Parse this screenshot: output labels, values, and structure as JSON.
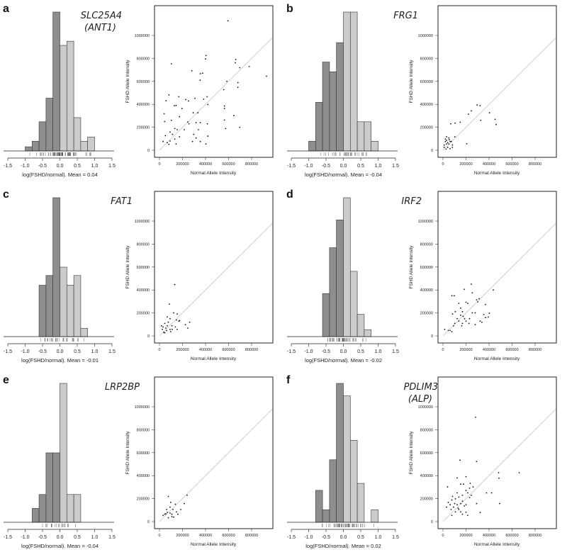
{
  "colors": {
    "negative_bar": "#8e8e8e",
    "positive_bar": "#cbcbcb",
    "identity_line": "#c4c4c4",
    "points": "#111111"
  },
  "shared": {
    "hist_xticks": [
      "-1.5",
      "-1.0",
      "-0.5",
      "0.0",
      "0.5",
      "1.0",
      "1.5"
    ],
    "scatter_xticks": [
      "0",
      "200000",
      "400000",
      "600000",
      "800000"
    ],
    "scatter_yticks": [
      "0",
      "200000",
      "400000",
      "600000",
      "800000",
      "1000000"
    ],
    "scatter_xlabel": "Normal Allele Intensity",
    "scatter_ylabel": "FSHD Allele Intensity",
    "points_unit_multiplier": 1000
  },
  "chart_data": [
    {
      "letter": "a",
      "gene": [
        "SLC25A4",
        "(ANT1)"
      ],
      "type": "histogram+scatter",
      "hist": {
        "xlabel": "log(FSHD/normal). Mean =  0.04",
        "bin_start": -1.0,
        "bin_width": 0.2,
        "relative_counts": [
          3,
          7,
          21,
          38,
          100,
          76,
          79,
          24,
          7,
          10
        ]
      },
      "scatter": {
        "points": [
          [
            595,
            1127
          ],
          [
            103,
            753
          ],
          [
            404,
            825
          ],
          [
            400,
            795
          ],
          [
            662,
            790
          ],
          [
            658,
            762
          ],
          [
            697,
            719
          ],
          [
            779,
            729
          ],
          [
            929,
            645
          ],
          [
            281,
            692
          ],
          [
            355,
            667
          ],
          [
            375,
            671
          ],
          [
            353,
            610
          ],
          [
            585,
            600
          ],
          [
            681,
            589
          ],
          [
            681,
            548
          ],
          [
            558,
            528
          ],
          [
            41,
            318
          ],
          [
            82,
            482
          ],
          [
            57,
            431
          ],
          [
            168,
            466
          ],
          [
            129,
            388
          ],
          [
            144,
            390
          ],
          [
            228,
            441
          ],
          [
            252,
            429
          ],
          [
            308,
            452
          ],
          [
            414,
            466
          ],
          [
            384,
            445
          ],
          [
            564,
            386
          ],
          [
            564,
            363
          ],
          [
            195,
            363
          ],
          [
            174,
            292
          ],
          [
            293,
            326
          ],
          [
            334,
            326
          ],
          [
            420,
            398
          ],
          [
            45,
            250
          ],
          [
            103,
            261
          ],
          [
            246,
            246
          ],
          [
            256,
            230
          ],
          [
            133,
            189
          ],
          [
            154,
            179
          ],
          [
            318,
            240
          ],
          [
            355,
            240
          ],
          [
            416,
            230
          ],
          [
            564,
            263
          ],
          [
            574,
            189
          ],
          [
            697,
            199
          ],
          [
            92,
            158
          ],
          [
            113,
            138
          ],
          [
            215,
            179
          ],
          [
            338,
            179
          ],
          [
            51,
            127
          ],
          [
            31,
            76
          ],
          [
            68,
            66
          ],
          [
            82,
            51
          ],
          [
            133,
            97
          ],
          [
            297,
            138
          ],
          [
            318,
            107
          ],
          [
            287,
            76
          ],
          [
            355,
            76
          ],
          [
            404,
            55
          ],
          [
            420,
            123
          ],
          [
            92,
            80
          ],
          [
            144,
            55
          ],
          [
            174,
            117
          ],
          [
            646,
            302
          ]
        ]
      }
    },
    {
      "letter": "b",
      "gene": [
        "FRG1"
      ],
      "type": "histogram+scatter",
      "hist": {
        "xlabel": "log(FSHD/normal). Mean =  -0.04",
        "bin_start": -1.0,
        "bin_width": 0.2,
        "relative_counts": [
          7,
          35,
          64,
          57,
          78,
          100,
          100,
          21,
          21,
          7
        ]
      },
      "scatter": {
        "points": [
          [
            297,
            394
          ],
          [
            322,
            388
          ],
          [
            246,
            343
          ],
          [
            221,
            314
          ],
          [
            404,
            326
          ],
          [
            453,
            269
          ],
          [
            462,
            224
          ],
          [
            328,
            261
          ],
          [
            150,
            244
          ],
          [
            105,
            236
          ],
          [
            68,
            230
          ],
          [
            207,
            57
          ],
          [
            103,
            117
          ],
          [
            21,
            97
          ],
          [
            31,
            117
          ],
          [
            51,
            107
          ],
          [
            62,
            76
          ],
          [
            31,
            55
          ],
          [
            10,
            25
          ],
          [
            41,
            25
          ],
          [
            62,
            14
          ],
          [
            82,
            45
          ],
          [
            72,
            76
          ],
          [
            21,
            76
          ],
          [
            51,
            55
          ],
          [
            31,
            86
          ],
          [
            82,
            25
          ],
          [
            10,
            45
          ],
          [
            41,
            66
          ],
          [
            55,
            92
          ],
          [
            27,
            10
          ]
        ]
      }
    },
    {
      "letter": "c",
      "gene": [
        "FAT1"
      ],
      "type": "histogram+scatter",
      "hist": {
        "xlabel": "log(FSHD/normal). Mean =  -0.01",
        "bin_start": -0.6,
        "bin_width": 0.2,
        "relative_counts": [
          37,
          44,
          100,
          50,
          37,
          44,
          6
        ]
      },
      "scatter": {
        "points": [
          [
            132,
            447
          ],
          [
            86,
            277
          ],
          [
            123,
            201
          ],
          [
            68,
            166
          ],
          [
            154,
            191
          ],
          [
            175,
            133
          ],
          [
            262,
            119
          ],
          [
            246,
            68
          ],
          [
            225,
            98
          ],
          [
            92,
            150
          ],
          [
            108,
            88
          ],
          [
            46,
            109
          ],
          [
            31,
            78
          ],
          [
            25,
            57
          ],
          [
            46,
            27
          ],
          [
            62,
            47
          ],
          [
            92,
            57
          ],
          [
            138,
            78
          ],
          [
            154,
            57
          ],
          [
            169,
            129
          ],
          [
            77,
            119
          ],
          [
            37,
            31
          ],
          [
            55,
            68
          ],
          [
            18,
            88
          ],
          [
            68,
            88
          ],
          [
            98,
            37
          ],
          [
            148,
            139
          ],
          [
            111,
            57
          ]
        ]
      }
    },
    {
      "letter": "d",
      "gene": [
        "IRF2"
      ],
      "type": "histogram+scatter",
      "hist": {
        "xlabel": "log(FSHD/normal). Mean =  -0.02",
        "bin_start": -0.6,
        "bin_width": 0.2,
        "relative_counts": [
          31,
          64,
          84,
          100,
          47,
          16,
          5
        ]
      },
      "scatter": {
        "points": [
          [
            77,
            350
          ],
          [
            98,
            350
          ],
          [
            246,
            451
          ],
          [
            185,
            406
          ],
          [
            255,
            375
          ],
          [
            437,
            400
          ],
          [
            292,
            314
          ],
          [
            314,
            324
          ],
          [
            369,
            273
          ],
          [
            394,
            164
          ],
          [
            302,
            297
          ],
          [
            215,
            283
          ],
          [
            138,
            283
          ],
          [
            200,
            293
          ],
          [
            154,
            242
          ],
          [
            169,
            211
          ],
          [
            83,
            191
          ],
          [
            255,
            201
          ],
          [
            280,
            201
          ],
          [
            354,
            186
          ],
          [
            403,
            197
          ],
          [
            123,
            150
          ],
          [
            188,
            150
          ],
          [
            231,
            150
          ],
          [
            323,
            129
          ],
          [
            338,
            119
          ],
          [
            369,
            160
          ],
          [
            280,
            98
          ],
          [
            200,
            129
          ],
          [
            169,
            109
          ],
          [
            138,
            129
          ],
          [
            102,
            109
          ],
          [
            92,
            88
          ],
          [
            62,
            47
          ],
          [
            46,
            47
          ],
          [
            77,
            37
          ],
          [
            15,
            57
          ],
          [
            154,
            180
          ],
          [
            108,
            211
          ],
          [
            175,
            170
          ],
          [
            225,
            109
          ],
          [
            163,
            88
          ]
        ]
      }
    },
    {
      "letter": "e",
      "gene": [
        "LRP2BP"
      ],
      "type": "histogram+scatter",
      "hist": {
        "xlabel": "log(FSHD/normal). Mean =  -0.04",
        "bin_start": -0.8,
        "bin_width": 0.2,
        "relative_counts": [
          10,
          20,
          50,
          50,
          100,
          20,
          20
        ]
      },
      "scatter": {
        "points": [
          [
            77,
            219
          ],
          [
            240,
            229
          ],
          [
            215,
            157
          ],
          [
            185,
            105
          ],
          [
            138,
            151
          ],
          [
            98,
            167
          ],
          [
            92,
            126
          ],
          [
            117,
            105
          ],
          [
            62,
            105
          ],
          [
            46,
            64
          ],
          [
            31,
            54
          ],
          [
            55,
            68
          ],
          [
            68,
            81
          ],
          [
            77,
            33
          ],
          [
            108,
            43
          ],
          [
            123,
            39
          ],
          [
            148,
            85
          ],
          [
            160,
            64
          ],
          [
            92,
            74
          ],
          [
            108,
            64
          ]
        ]
      }
    },
    {
      "letter": "f",
      "gene": [
        "PDLIM3",
        "(ALP)"
      ],
      "type": "histogram+scatter",
      "hist": {
        "xlabel": "log(FSHD/normal). Mean =  0.02",
        "bin_start": -0.8,
        "bin_width": 0.2,
        "relative_counts": [
          23,
          9,
          45,
          100,
          91,
          59,
          28,
          0,
          9
        ]
      },
      "scatter": {
        "points": [
          [
            283,
            909
          ],
          [
            148,
            535
          ],
          [
            292,
            523
          ],
          [
            483,
            426
          ],
          [
            662,
            426
          ],
          [
            486,
            378
          ],
          [
            123,
            380
          ],
          [
            200,
            391
          ],
          [
            154,
            326
          ],
          [
            178,
            326
          ],
          [
            237,
            333
          ],
          [
            40,
            302
          ],
          [
            378,
            250
          ],
          [
            422,
            250
          ],
          [
            492,
            157
          ],
          [
            323,
            79
          ],
          [
            292,
            157
          ],
          [
            231,
            209
          ],
          [
            200,
            271
          ],
          [
            231,
            291
          ],
          [
            262,
            302
          ],
          [
            215,
            250
          ],
          [
            246,
            229
          ],
          [
            169,
            229
          ],
          [
            138,
            213
          ],
          [
            108,
            198
          ],
          [
            77,
            188
          ],
          [
            62,
            147
          ],
          [
            46,
            167
          ],
          [
            92,
            126
          ],
          [
            123,
            147
          ],
          [
            154,
            157
          ],
          [
            185,
            136
          ],
          [
            138,
            105
          ],
          [
            108,
            85
          ],
          [
            169,
            64
          ],
          [
            200,
            81
          ],
          [
            77,
            54
          ],
          [
            31,
            126
          ],
          [
            71,
            105
          ],
          [
            132,
            116
          ],
          [
            102,
            157
          ],
          [
            169,
            178
          ],
          [
            200,
            147
          ],
          [
            123,
            250
          ],
          [
            83,
            219
          ],
          [
            154,
            85
          ],
          [
            215,
            54
          ]
        ]
      }
    }
  ]
}
